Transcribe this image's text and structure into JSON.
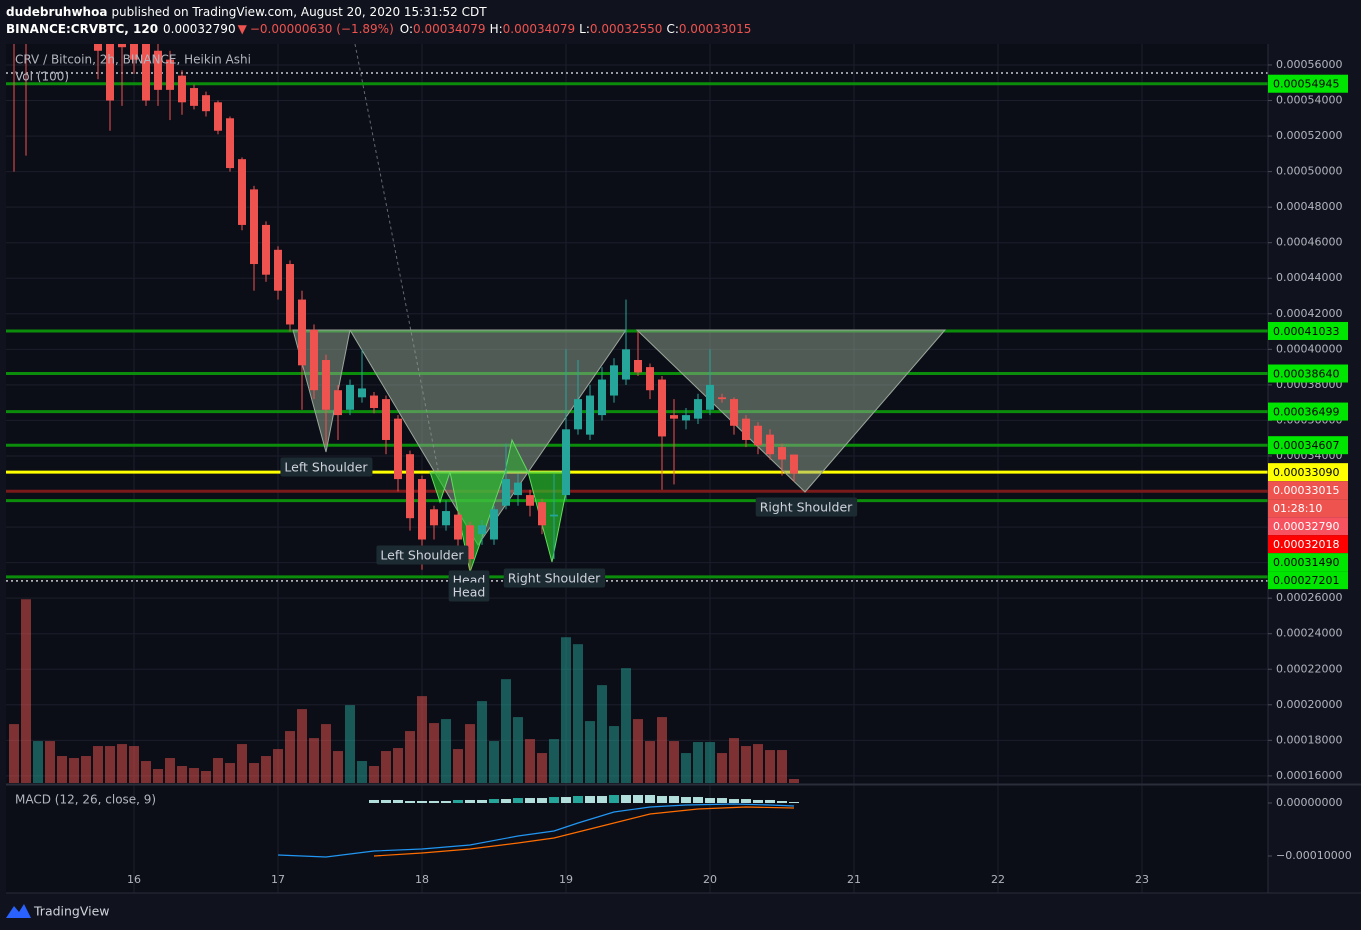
{
  "header": {
    "user": "dudebruhwhoa",
    "published": "published on TradingView.com, August 20, 2020 15:31:52 CDT",
    "symbol": "BINANCE:CRVBTC, 120",
    "last": "0.00032790",
    "arrow": "▼",
    "change": "−0.00000630 (−1.89%)",
    "o_label": "O:",
    "o": "0.00034079",
    "h_label": "H:",
    "h": "0.00034079",
    "l_label": "L:",
    "l": "0.00032550",
    "c_label": "C:",
    "c": "0.00033015"
  },
  "footer": {
    "brand": "TradingView"
  },
  "chart_data": [
    {
      "type": "candlestick",
      "title": "CRV / Bitcoin, 2h, BINANCE, Heikin Ashi",
      "volume_title": "Vol (100)",
      "x": [
        15.1667,
        15.25,
        15.3333,
        15.4167,
        15.5,
        15.5833,
        15.6667,
        15.75,
        15.8333,
        15.9167,
        16,
        16.0833,
        16.1667,
        16.25,
        16.3333,
        16.4167,
        16.5,
        16.5833,
        16.6667,
        16.75,
        16.8333,
        16.9167,
        17,
        17.0833,
        17.1667,
        17.25,
        17.3333,
        17.4167,
        17.5,
        17.5833,
        17.6667,
        17.75,
        17.8333,
        17.9167,
        18,
        18.0833,
        18.1667,
        18.25,
        18.3333,
        18.4167,
        18.5,
        18.5833,
        18.6667,
        18.75,
        18.8333,
        18.9167,
        19,
        19.0833,
        19.1667,
        19.25,
        19.3333,
        19.4167,
        19.5,
        19.5833,
        19.6667,
        19.75,
        19.8333,
        19.9167,
        20,
        20.0833,
        20.1667,
        20.25,
        20.3333,
        20.4167,
        20.5,
        20.5833
      ],
      "open": [
        0.0006,
        0.0006,
        0.0006,
        0.00061,
        0.0006,
        0.000595,
        0.00059,
        0.000575,
        0.000575,
        0.000575,
        0.000575,
        0.000575,
        0.000568,
        0.000563,
        0.000554,
        0.000547,
        0.000543,
        0.000539,
        0.00053,
        0.000507,
        0.00049,
        0.00047,
        0.000456,
        0.000448,
        0.000428,
        0.000411,
        0.000394,
        0.000377,
        0.000366,
        0.000373,
        0.000374,
        0.000372,
        0.000361,
        0.000341,
        0.000327,
        0.00031,
        0.000301,
        0.000307,
        0.000301,
        0.000296,
        0.000293,
        0.000312,
        0.000318,
        0.000318,
        0.000314,
        0.000306,
        0.000318,
        0.000355,
        0.000352,
        0.000363,
        0.000374,
        0.000383,
        0.000394,
        0.00039,
        0.000383,
        0.000363,
        0.00036,
        0.000361,
        0.000366,
        0.000373,
        0.000372,
        0.000361,
        0.000357,
        0.000352,
        0.000345,
        0.00034079
      ],
      "high": [
        0.00061,
        0.00061,
        0.000615,
        0.000615,
        0.000605,
        0.0006,
        0.000595,
        0.00058,
        0.00058,
        0.00058,
        0.00058,
        0.00058,
        0.000572,
        0.000568,
        0.000557,
        0.000549,
        0.000545,
        0.00054,
        0.000531,
        0.000508,
        0.000492,
        0.000472,
        0.000458,
        0.00045,
        0.000433,
        0.000414,
        0.000397,
        0.00038,
        0.000383,
        0.0004,
        0.000376,
        0.000374,
        0.000363,
        0.000343,
        0.000329,
        0.000312,
        0.000315,
        0.000309,
        0.000303,
        0.000304,
        0.000312,
        0.000347,
        0.00033,
        0.000321,
        0.000316,
        0.00033,
        0.0004,
        0.000394,
        0.00038,
        0.00039,
        0.000395,
        0.000428,
        0.00041,
        0.000392,
        0.000385,
        0.000372,
        0.000367,
        0.000375,
        0.0004,
        0.000375,
        0.000373,
        0.000363,
        0.000359,
        0.000355,
        0.000347,
        0.00034079
      ],
      "low": [
        0.0005,
        0.000509,
        0.000585,
        0.00059,
        0.000585,
        0.00058,
        0.000578,
        0.000552,
        0.000523,
        0.000537,
        0.000555,
        0.000537,
        0.000537,
        0.000529,
        0.000532,
        0.000535,
        0.000531,
        0.000521,
        0.0005,
        0.000467,
        0.000433,
        0.000438,
        0.000428,
        0.00041,
        0.000366,
        0.000372,
        0.000346,
        0.000349,
        0.000363,
        0.00037,
        0.000364,
        0.000341,
        0.00032,
        0.000298,
        0.000276,
        0.000293,
        0.000298,
        0.000285,
        0.000276,
        0.00029,
        0.00029,
        0.00031,
        0.000312,
        0.000306,
        0.000296,
        0.000282,
        0.000315,
        0.000352,
        0.000349,
        0.00036,
        0.00037,
        0.00038,
        0.000385,
        0.000372,
        0.000321,
        0.000324,
        0.000355,
        0.000358,
        0.000363,
        0.00037,
        0.000352,
        0.000345,
        0.000341,
        0.000338,
        0.000329,
        0.0003255
      ],
      "close": [
        0.00059,
        0.00059,
        0.00061,
        0.0006,
        0.000595,
        0.00059,
        0.000585,
        0.000568,
        0.00054,
        0.00057,
        0.000563,
        0.00054,
        0.000546,
        0.000546,
        0.000539,
        0.000537,
        0.000534,
        0.000523,
        0.000502,
        0.00047,
        0.000448,
        0.000442,
        0.000433,
        0.000414,
        0.000391,
        0.000377,
        0.000366,
        0.000363,
        0.00038,
        0.000378,
        0.000367,
        0.000349,
        0.000327,
        0.000305,
        0.000293,
        0.000301,
        0.000309,
        0.000293,
        0.000282,
        0.000301,
        0.00031,
        0.000327,
        0.000325,
        0.000312,
        0.000301,
        0.000307,
        0.000355,
        0.000372,
        0.000374,
        0.000383,
        0.000391,
        0.0004,
        0.000387,
        0.000377,
        0.000351,
        0.000361,
        0.000363,
        0.000372,
        0.00038,
        0.000372,
        0.000357,
        0.000349,
        0.000346,
        0.000341,
        0.000338,
        0.00033015
      ],
      "volume": [
        59,
        184,
        42,
        42,
        27,
        25,
        27,
        37,
        37,
        39,
        37,
        22,
        14,
        25,
        17,
        15,
        12,
        25,
        20,
        39,
        20,
        27,
        34,
        52,
        74,
        45,
        59,
        32,
        78,
        22,
        17,
        32,
        35,
        52,
        87,
        60,
        64,
        34,
        59,
        82,
        42,
        104,
        66,
        44,
        30,
        44,
        146,
        139,
        62,
        98,
        57,
        115,
        64,
        42,
        66,
        42,
        30,
        41,
        41,
        30,
        45,
        37,
        39,
        33,
        33,
        4
      ],
      "volume_ylim": [
        0,
        740
      ],
      "up_color": "#26a69a",
      "down_color": "#ef5350",
      "volume_up_color": "rgba(38,166,154,0.5)",
      "volume_down_color": "rgba(239,83,80,0.5)",
      "xlim": [
        15.1111,
        23.875
      ],
      "xticks": [
        16,
        17,
        18,
        19,
        20,
        21,
        22,
        23
      ],
      "ylim": [
        0.000156,
        0.0005718
      ],
      "yticks": [
        {
          "value": 0.00056,
          "label": "0.00056000"
        },
        {
          "value": 0.00054,
          "label": "0.00054000"
        },
        {
          "value": 0.00052,
          "label": "0.00052000"
        },
        {
          "value": 0.0005,
          "label": "0.00050000"
        },
        {
          "value": 0.00048,
          "label": "0.00048000"
        },
        {
          "value": 0.00046,
          "label": "0.00046000"
        },
        {
          "value": 0.00044,
          "label": "0.00044000"
        },
        {
          "value": 0.00042,
          "label": "0.00042000"
        },
        {
          "value": 0.0004,
          "label": "0.00040000"
        },
        {
          "value": 0.00038,
          "label": "0.00038000"
        },
        {
          "value": 0.00036,
          "label": "0.00036000"
        },
        {
          "value": 0.00034,
          "label": "0.00034000"
        },
        {
          "value": 0.00032,
          "label": "0.00032000"
        },
        {
          "value": 0.0003,
          "label": "0.00030000"
        },
        {
          "value": 0.00028,
          "label": "0.00028000"
        },
        {
          "value": 0.00026,
          "label": "0.00026000"
        },
        {
          "value": 0.00024,
          "label": "0.00024000"
        },
        {
          "value": 0.00022,
          "label": "0.00022000"
        },
        {
          "value": 0.0002,
          "label": "0.00020000"
        },
        {
          "value": 0.00018,
          "label": "0.00018000"
        },
        {
          "value": 0.00016,
          "label": "0.00016000"
        }
      ],
      "grid": true,
      "levels": [
        {
          "value": 0.00054945,
          "label": "0.00054945",
          "box_color": "#00e600",
          "text_color": "#000000",
          "line_color": "#0b8c0b"
        },
        {
          "value": 0.00041033,
          "label": "0.00041033",
          "box_color": "#00e600",
          "text_color": "#000000",
          "line_color": "#0b8c0b"
        },
        {
          "value": 0.0003864,
          "label": "0.00038640",
          "box_color": "#00e600",
          "text_color": "#000000",
          "line_color": "#0b8c0b"
        },
        {
          "value": 0.00036499,
          "label": "0.00036499",
          "box_color": "#00e600",
          "text_color": "#000000",
          "line_color": "#0b8c0b"
        },
        {
          "value": 0.00034607,
          "label": "0.00034607",
          "box_color": "#00e600",
          "text_color": "#000000",
          "line_color": "#0b8c0b"
        },
        {
          "value": 0.0003309,
          "label": "0.00033090",
          "box_color": "#ffff00",
          "text_color": "#000000",
          "line_color": "#ffff00"
        },
        {
          "value": 0.00033015,
          "label": "0.00033015",
          "box_color": "#ef5350",
          "text_color": "#ffffff",
          "countdown": "01:28:10"
        },
        {
          "value": 0.0003279,
          "label": "0.00032790",
          "box_color": "#f7525f",
          "text_color": "#ffffff"
        },
        {
          "value": 0.00032018,
          "label": "0.00032018",
          "box_color": "#ff0000",
          "text_color": "#ffffff",
          "line_color": "#7a1a1a"
        },
        {
          "value": 0.0003149,
          "label": "0.00031490",
          "box_color": "#00e600",
          "text_color": "#000000",
          "line_color": "#0b8c0b"
        },
        {
          "value": 0.00027201,
          "label": "0.00027201",
          "box_color": "#00e600",
          "text_color": "#000000",
          "line_color": "#0b8c0b"
        }
      ],
      "dotted_levels": [
        0.0005555,
        0.0002697
      ],
      "annotations": [
        "Left Shoulder",
        "Left Shoulder",
        "Head",
        "Head",
        "Right Shoulder",
        "Right Shoulder"
      ]
    },
    {
      "type": "macd",
      "title": "MACD (12, 26, close, 9)",
      "xlim": [
        15.1111,
        23.875
      ],
      "ylim": [
        -0.0001698,
        3.21e-05
      ],
      "yticks": [
        {
          "value": 0,
          "label": "0.00000000"
        },
        {
          "value": -0.0001,
          "label": "−0.00010000"
        }
      ],
      "series": [
        {
          "color": "#2196f3",
          "x": [
            17,
            17.3333,
            17.6667,
            18,
            18.3333,
            18.6667,
            18.9167,
            19.0833,
            19.3333,
            19.5833,
            19.8333,
            20.1667,
            20.4167,
            20.5833
          ],
          "values": [
            -9.81e-05,
            -0.0001019,
            -9.06e-05,
            -8.68e-05,
            -7.92e-05,
            -6.23e-05,
            -5.28e-05,
            -3.77e-05,
            -1.7e-05,
            -7.5e-06,
            -3.8e-06,
            -1.9e-06,
            -3.8e-06,
            -5.7e-06
          ]
        },
        {
          "color": "#ff6d00",
          "x": [
            17.6667,
            18,
            18.3333,
            18.6667,
            18.9167,
            19.25,
            19.5833,
            19.9167,
            20.25,
            20.5833
          ],
          "values": [
            -0.0001,
            -9.43e-05,
            -8.68e-05,
            -7.55e-05,
            -6.6e-05,
            -4.34e-05,
            -2.08e-05,
            -1.13e-05,
            -7.5e-06,
            -9.4e-06
          ]
        }
      ],
      "histogram": {
        "up_color": "#26a69a",
        "down_color": "#b2dfdb",
        "x": [
          17.6667,
          17.75,
          17.8333,
          17.9167,
          18,
          18.0833,
          18.1667,
          18.25,
          18.3333,
          18.4167,
          18.5,
          18.5833,
          18.6667,
          18.75,
          18.8333,
          18.9167,
          19,
          19.0833,
          19.1667,
          19.25,
          19.3333,
          19.4167,
          19.5,
          19.5833,
          19.6667,
          19.75,
          19.8333,
          19.9167,
          20,
          20.0833,
          20.1667,
          20.25,
          20.3333,
          20.4167,
          20.5,
          20.5833
        ],
        "values": [
          5.7e-06,
          5.7e-06,
          5.7e-06,
          3.8e-06,
          3.8e-06,
          3.8e-06,
          3.8e-06,
          5.7e-06,
          5.7e-06,
          5.7e-06,
          7.5e-06,
          7.5e-06,
          9.4e-06,
          9.4e-06,
          9.4e-06,
          1.13e-05,
          1.13e-05,
          1.32e-05,
          1.32e-05,
          1.32e-05,
          1.51e-05,
          1.51e-05,
          1.51e-05,
          1.51e-05,
          1.32e-05,
          1.32e-05,
          1.13e-05,
          1.13e-05,
          9.4e-06,
          9.4e-06,
          7.5e-06,
          7.5e-06,
          5.7e-06,
          5.7e-06,
          3.8e-06,
          1.9e-06
        ]
      }
    }
  ]
}
